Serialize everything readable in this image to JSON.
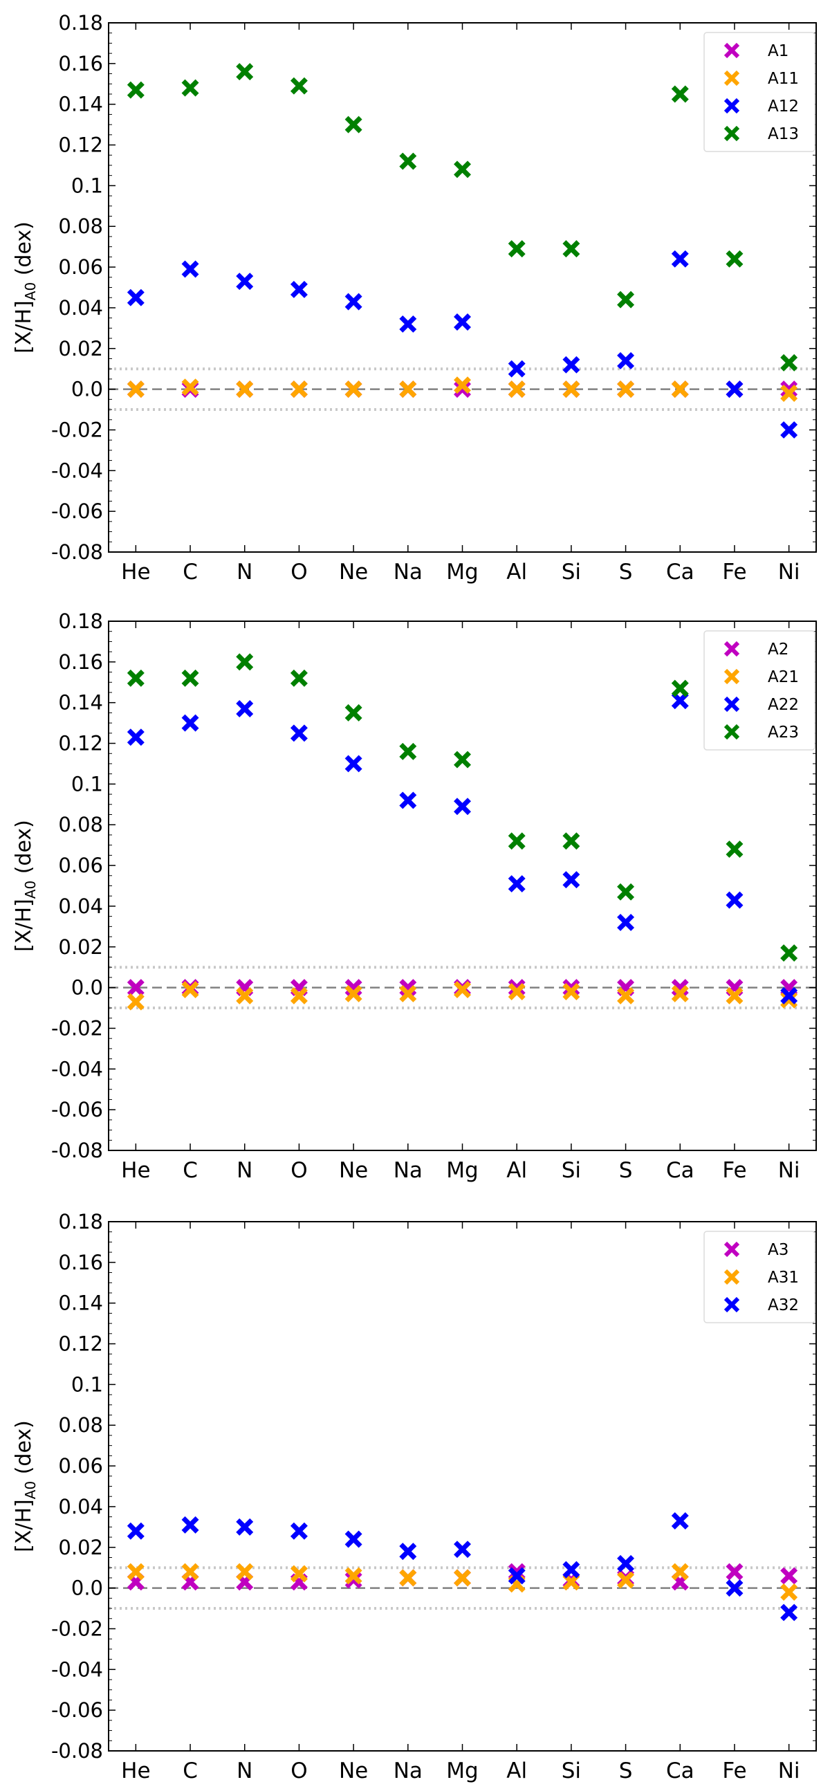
{
  "chart_data": [
    {
      "type": "scatter",
      "ylabel": "[X/H]",
      "ylabel_sub": "A0",
      "ylabel_unit": "(dex)",
      "ylim": [
        -0.08,
        0.18
      ],
      "yticks": [
        "0.18",
        "0.16",
        "0.14",
        "0.12",
        "0.1",
        "0.08",
        "0.06",
        "0.04",
        "0.02",
        "0.0",
        "-0.02",
        "-0.04",
        "-0.06",
        "-0.08"
      ],
      "categories": [
        "He",
        "C",
        "N",
        "O",
        "Ne",
        "Na",
        "Mg",
        "Al",
        "Si",
        "S",
        "Ca",
        "Fe",
        "Ni"
      ],
      "reference_lines": {
        "dashed": 0.0,
        "dotted": [
          0.01,
          -0.01
        ]
      },
      "legend": "top-right",
      "series": [
        {
          "name": "A1",
          "color": "#c000c0",
          "values": [
            0.0,
            0.0,
            0.0,
            0.0,
            0.0,
            0.0,
            0.0,
            0.0,
            0.0,
            0.0,
            0.0,
            0.0,
            0.0
          ]
        },
        {
          "name": "A11",
          "color": "#ffa500",
          "values": [
            0.0,
            0.001,
            0.0,
            0.0,
            0.0,
            0.0,
            0.002,
            0.0,
            0.0,
            0.0,
            0.0,
            null,
            -0.002
          ]
        },
        {
          "name": "A12",
          "color": "#0000ff",
          "values": [
            0.045,
            0.059,
            0.053,
            0.049,
            0.043,
            0.032,
            0.033,
            0.01,
            0.012,
            0.014,
            0.064,
            0.0,
            -0.02
          ]
        },
        {
          "name": "A13",
          "color": "#008000",
          "values": [
            0.147,
            0.148,
            0.156,
            0.149,
            0.13,
            0.112,
            0.108,
            0.069,
            0.069,
            0.044,
            0.145,
            0.064,
            0.013
          ]
        }
      ]
    },
    {
      "type": "scatter",
      "ylabel": "[X/H]",
      "ylabel_sub": "A0",
      "ylabel_unit": "(dex)",
      "ylim": [
        -0.08,
        0.18
      ],
      "yticks": [
        "0.18",
        "0.16",
        "0.14",
        "0.12",
        "0.1",
        "0.08",
        "0.06",
        "0.04",
        "0.02",
        "0.0",
        "-0.02",
        "-0.04",
        "-0.06",
        "-0.08"
      ],
      "categories": [
        "He",
        "C",
        "N",
        "O",
        "Ne",
        "Na",
        "Mg",
        "Al",
        "Si",
        "S",
        "Ca",
        "Fe",
        "Ni"
      ],
      "reference_lines": {
        "dashed": 0.0,
        "dotted": [
          0.01,
          -0.01
        ]
      },
      "legend": "top-right",
      "series": [
        {
          "name": "A2",
          "color": "#c000c0",
          "values": [
            0.0,
            0.0,
            0.0,
            0.0,
            0.0,
            0.0,
            0.0,
            0.0,
            0.0,
            0.0,
            0.0,
            0.0,
            0.0
          ]
        },
        {
          "name": "A21",
          "color": "#ffa500",
          "values": [
            -0.007,
            -0.001,
            -0.004,
            -0.004,
            -0.003,
            -0.003,
            -0.001,
            -0.002,
            -0.002,
            -0.004,
            -0.003,
            -0.004,
            -0.006
          ]
        },
        {
          "name": "A22",
          "color": "#0000ff",
          "values": [
            0.123,
            0.13,
            0.137,
            0.125,
            0.11,
            0.092,
            0.089,
            0.051,
            0.053,
            0.032,
            0.141,
            0.043,
            -0.004
          ]
        },
        {
          "name": "A23",
          "color": "#008000",
          "values": [
            0.152,
            0.152,
            0.16,
            0.152,
            0.135,
            0.116,
            0.112,
            0.072,
            0.072,
            0.047,
            0.147,
            0.068,
            0.017
          ]
        }
      ]
    },
    {
      "type": "scatter",
      "ylabel": "[X/H]",
      "ylabel_sub": "A0",
      "ylabel_unit": "(dex)",
      "ylim": [
        -0.08,
        0.18
      ],
      "yticks": [
        "0.18",
        "0.16",
        "0.14",
        "0.12",
        "0.1",
        "0.08",
        "0.06",
        "0.04",
        "0.02",
        "0.0",
        "-0.02",
        "-0.04",
        "-0.06",
        "-0.08"
      ],
      "categories": [
        "He",
        "C",
        "N",
        "O",
        "Ne",
        "Na",
        "Mg",
        "Al",
        "Si",
        "S",
        "Ca",
        "Fe",
        "Ni"
      ],
      "reference_lines": {
        "dashed": 0.0,
        "dotted": [
          0.01,
          -0.01
        ]
      },
      "legend": "top-right",
      "series": [
        {
          "name": "A3",
          "color": "#c000c0",
          "values": [
            0.003,
            0.003,
            0.003,
            0.003,
            0.004,
            0.005,
            0.005,
            0.008,
            0.004,
            0.005,
            0.003,
            0.008,
            0.006
          ]
        },
        {
          "name": "A31",
          "color": "#ffa500",
          "values": [
            0.008,
            0.008,
            0.008,
            0.007,
            0.006,
            0.005,
            0.005,
            0.002,
            0.003,
            0.004,
            0.008,
            null,
            -0.002
          ]
        },
        {
          "name": "A32",
          "color": "#0000ff",
          "values": [
            0.028,
            0.031,
            0.03,
            0.028,
            0.024,
            0.018,
            0.019,
            0.006,
            0.009,
            0.012,
            0.033,
            0.0,
            -0.012
          ]
        }
      ]
    }
  ]
}
